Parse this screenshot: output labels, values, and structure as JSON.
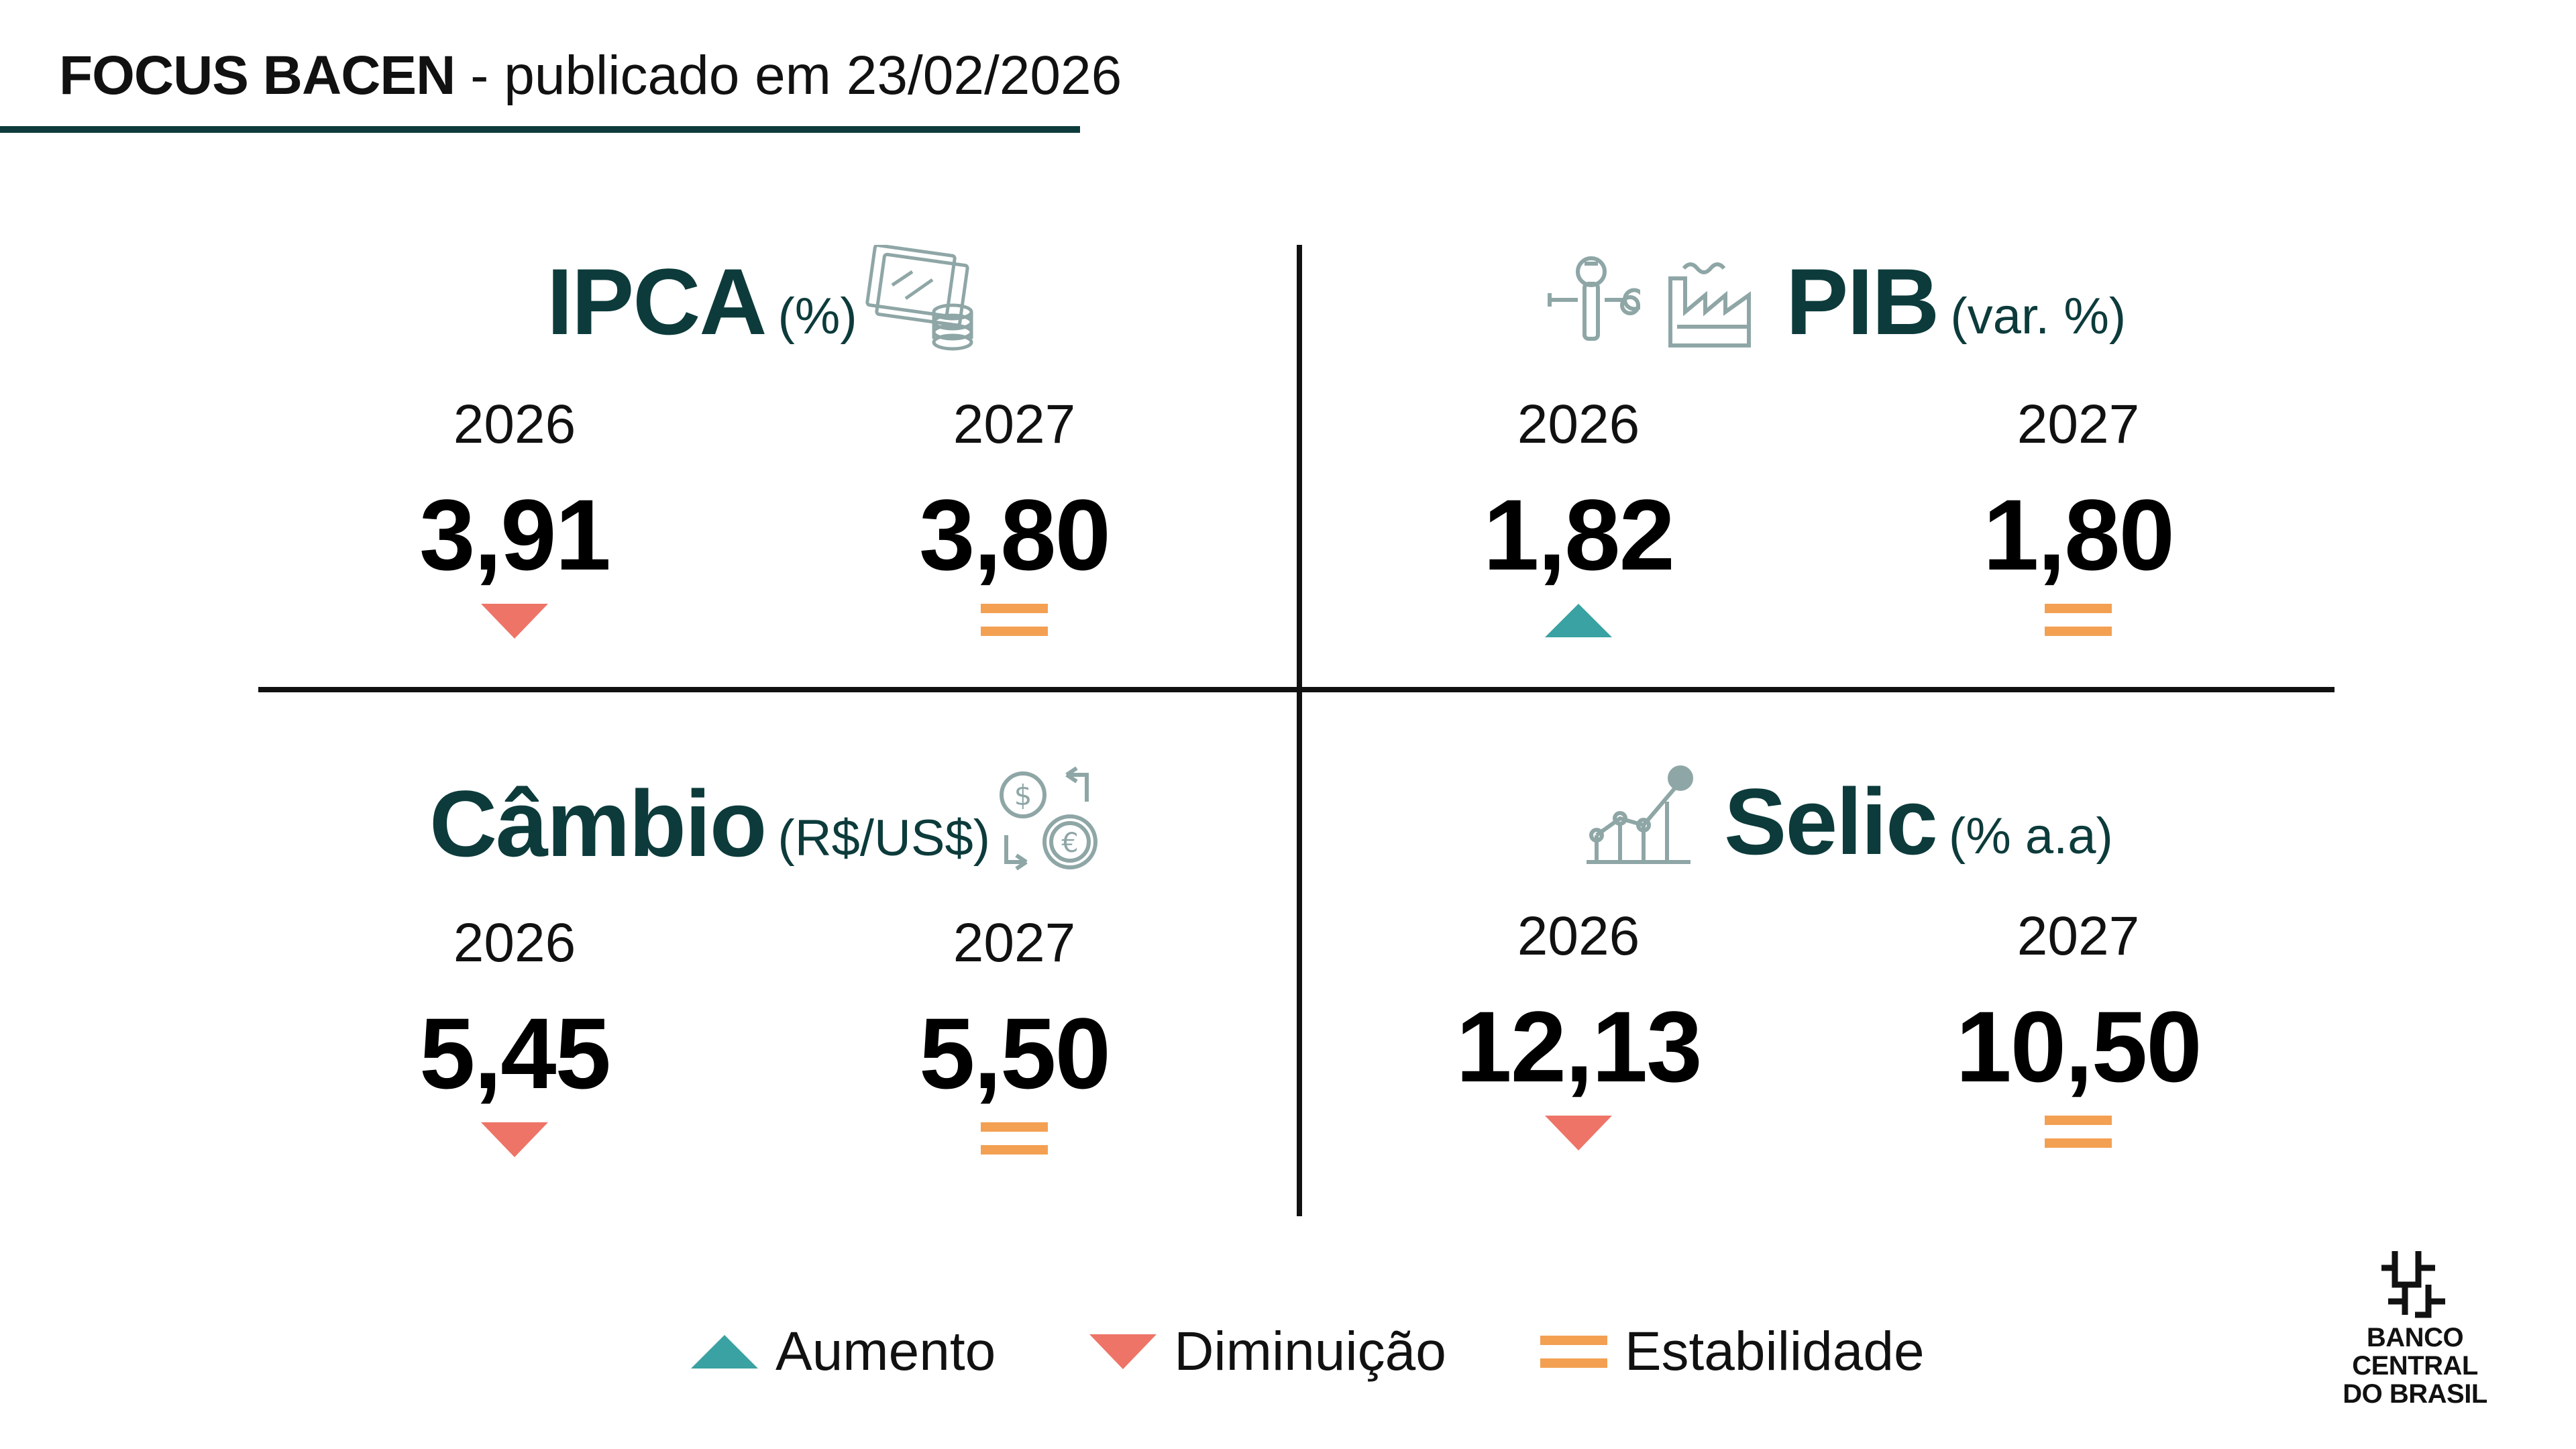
{
  "header": {
    "title_bold": "FOCUS BACEN",
    "title_rest": " - publicado em 23/02/2026"
  },
  "colors": {
    "teal_dark": "#0d3b3b",
    "increase": "#3aa2a2",
    "decrease": "#ee7467",
    "stable": "#f3a052"
  },
  "panels": {
    "ipca": {
      "title": "IPCA",
      "unit": "(%)",
      "icon": "money-coins-icon",
      "y2026": {
        "year": "2026",
        "value": "3,91",
        "trend": "decrease"
      },
      "y2027": {
        "year": "2027",
        "value": "3,80",
        "trend": "stable"
      }
    },
    "pib": {
      "title": "PIB",
      "unit": "(var. %)",
      "icon": "tools-factory-icon",
      "y2026": {
        "year": "2026",
        "value": "1,82",
        "trend": "increase"
      },
      "y2027": {
        "year": "2027",
        "value": "1,80",
        "trend": "stable"
      }
    },
    "cambio": {
      "title": "Câmbio",
      "unit": "(R$/US$)",
      "icon": "currency-exchange-icon",
      "y2026": {
        "year": "2026",
        "value": "5,45",
        "trend": "decrease"
      },
      "y2027": {
        "year": "2027",
        "value": "5,50",
        "trend": "stable"
      }
    },
    "selic": {
      "title": "Selic",
      "unit": "(% a.a)",
      "icon": "growth-chart-icon",
      "y2026": {
        "year": "2026",
        "value": "12,13",
        "trend": "decrease"
      },
      "y2027": {
        "year": "2027",
        "value": "10,50",
        "trend": "stable"
      }
    }
  },
  "legend": {
    "increase": "Aumento",
    "decrease": "Diminuição",
    "stable": "Estabilidade"
  },
  "logo": {
    "line1": "BANCO CENTRAL",
    "line2": "DO BRASIL"
  }
}
